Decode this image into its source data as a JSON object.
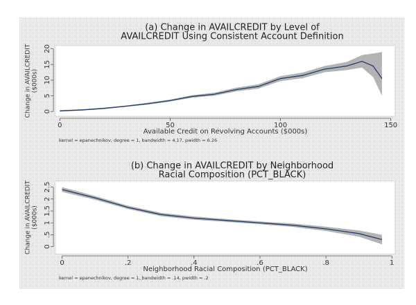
{
  "chart_data": [
    {
      "type": "line",
      "title": [
        "(a) Change in AVAILCREDIT by Level of",
        "AVAILCREDIT Using Consistent Account Definition"
      ],
      "y_label": [
        "Change in AVAILCREDIT",
        "($000s)"
      ],
      "x_label": "Available Credit on Revolving Accounts ($000s)",
      "note": "kernel = epanechnikov, degree = 1, bandwidth = 4.17, pwidth = 6.26",
      "x": [
        0,
        10,
        20,
        30,
        40,
        50,
        60,
        70,
        80,
        90,
        100,
        110,
        120,
        130,
        137,
        142,
        146
      ],
      "values": [
        0.2,
        0.5,
        1,
        1.7,
        2.5,
        3.5,
        4.8,
        5.5,
        7,
        8,
        10.5,
        11.5,
        13.5,
        14.5,
        16,
        14.5,
        10.5
      ],
      "ci_lower": [
        0,
        0.3,
        0.8,
        1.5,
        2.2,
        3.2,
        4.4,
        5,
        6.4,
        7.3,
        9.7,
        10.6,
        12.5,
        13.2,
        14,
        11,
        5
      ],
      "ci_upper": [
        0.4,
        0.7,
        1.2,
        1.9,
        2.8,
        3.8,
        5.2,
        6,
        7.6,
        8.7,
        11.3,
        12.4,
        14.5,
        15.8,
        18,
        18.5,
        19
      ],
      "color": "#1f3a6e",
      "band_color": "#9a9a9a",
      "xlim": [
        -2,
        152
      ],
      "xticks": [
        0,
        50,
        100,
        150
      ],
      "ylim": [
        -1.5,
        21
      ],
      "yticks": [
        0,
        5,
        10,
        15,
        20
      ]
    },
    {
      "type": "line",
      "title": [
        "(b) Change in AVAILCREDIT by Neighborhood",
        "Racial Composition (PCT_BLACK)"
      ],
      "y_label": [
        "Change in AVAILCREDIT",
        "($000s)"
      ],
      "x_label": "Neighborhood Racial Composition (PCT_BLACK)",
      "note": "kernel = epanechnikov, degree = 1, bandwidth = .14, pwidth = .2",
      "x": [
        0,
        0.1,
        0.2,
        0.3,
        0.4,
        0.5,
        0.6,
        0.7,
        0.8,
        0.9,
        0.97
      ],
      "values": [
        2.4,
        2.05,
        1.65,
        1.35,
        1.2,
        1.1,
        1.0,
        0.9,
        0.75,
        0.55,
        0.3
      ],
      "ci_lower": [
        2.3,
        1.97,
        1.58,
        1.28,
        1.13,
        1.04,
        0.94,
        0.83,
        0.66,
        0.42,
        0.1
      ],
      "ci_upper": [
        2.5,
        2.13,
        1.72,
        1.42,
        1.27,
        1.16,
        1.06,
        0.97,
        0.84,
        0.68,
        0.5
      ],
      "color": "#1f3a6e",
      "band_color": "#9a9a9a",
      "xlim": [
        -0.02,
        1.01
      ],
      "xticks": [
        0,
        {
          "value": 0.2,
          "label": ".2"
        },
        {
          "value": 0.4,
          "label": ".4"
        },
        {
          "value": 0.6,
          "label": ".6"
        },
        {
          "value": 0.8,
          "label": ".8"
        },
        1
      ],
      "ylim": [
        -0.3,
        2.75
      ],
      "yticks": [
        0,
        {
          "value": 0.5,
          "label": ".5"
        },
        1,
        1.5,
        2,
        2.5
      ]
    }
  ]
}
